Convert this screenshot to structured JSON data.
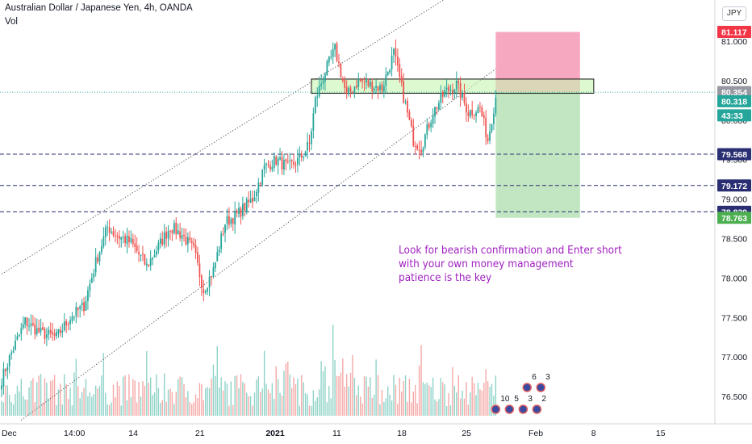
{
  "header": {
    "title": "Australian Dollar / Japanese Yen, 4h, OANDA",
    "volume_label": "Vol",
    "currency_button": "JPY"
  },
  "annotation": {
    "lines": [
      "Look for bearish confirmation and Enter short",
      "with your own money management",
      "patience is the key"
    ],
    "color": "#a020c0"
  },
  "colors": {
    "up": "#26a69a",
    "down": "#ef5350",
    "vol_up": "#8fd3c8",
    "vol_down": "#f4a9a7",
    "level_line": "#2a2e72",
    "stop_zone": "#f7a3be",
    "target_zone": "#bfe5bf",
    "resistance_zone": "#c6f5b0"
  },
  "chart_data": {
    "type": "candlestick",
    "symbol": "Australian Dollar / Japanese Yen",
    "interval": "4h",
    "source": "OANDA",
    "ylim": [
      76.2,
      81.45
    ],
    "y_ticks": [
      76.5,
      77.0,
      77.5,
      78.0,
      78.5,
      79.0,
      79.5,
      80.0,
      80.5,
      81.0
    ],
    "y_tick_labels": [
      "76.500",
      "77.000",
      "77.500",
      "78.000",
      "78.500",
      "79.000",
      "79.500",
      "80.000",
      "80.500",
      "81.000"
    ],
    "x_tick_labels": [
      "Dec",
      "14:00",
      "14",
      "21",
      "2021",
      "11",
      "18",
      "25",
      "Feb",
      "8",
      "15"
    ],
    "x_tick_index": [
      0,
      35,
      68,
      102,
      138,
      172,
      205,
      238,
      272,
      304,
      337
    ],
    "series_anchors": [
      [
        0,
        76.72
      ],
      [
        5,
        77.05
      ],
      [
        12,
        77.45
      ],
      [
        20,
        77.3
      ],
      [
        28,
        77.25
      ],
      [
        35,
        77.5
      ],
      [
        42,
        77.65
      ],
      [
        48,
        78.2
      ],
      [
        54,
        78.65
      ],
      [
        58,
        78.55
      ],
      [
        66,
        78.45
      ],
      [
        74,
        78.15
      ],
      [
        80,
        78.4
      ],
      [
        86,
        78.65
      ],
      [
        92,
        78.55
      ],
      [
        98,
        78.35
      ],
      [
        103,
        77.85
      ],
      [
        108,
        78.1
      ],
      [
        114,
        78.7
      ],
      [
        120,
        78.8
      ],
      [
        128,
        79.0
      ],
      [
        134,
        79.4
      ],
      [
        140,
        79.5
      ],
      [
        146,
        79.4
      ],
      [
        152,
        79.5
      ],
      [
        157,
        79.7
      ],
      [
        160,
        80.25
      ],
      [
        164,
        80.55
      ],
      [
        170,
        80.9
      ],
      [
        176,
        80.3
      ],
      [
        182,
        80.5
      ],
      [
        188,
        80.45
      ],
      [
        194,
        80.4
      ],
      [
        200,
        80.85
      ],
      [
        205,
        80.3
      ],
      [
        210,
        79.75
      ],
      [
        214,
        79.65
      ],
      [
        220,
        80.1
      ],
      [
        226,
        80.35
      ],
      [
        232,
        80.45
      ],
      [
        238,
        80.1
      ],
      [
        244,
        80.15
      ],
      [
        248,
        79.75
      ],
      [
        252,
        80.3
      ]
    ],
    "candle_count": 253,
    "horizontal_levels": [
      {
        "price": 79.568,
        "label": "79.568"
      },
      {
        "price": 79.172,
        "label": "79.172"
      },
      {
        "price": 78.839,
        "label": "78.839"
      }
    ],
    "resistance_zone": {
      "low": 80.34,
      "high": 80.52
    },
    "position": {
      "type": "short",
      "entry": 80.354,
      "stop": 81.117,
      "target": 78.763,
      "start_index": 252,
      "end_index": 295
    },
    "price_labels": [
      {
        "text": "81.117",
        "price": 81.117,
        "bg": "#f23645",
        "fg": "#ffffff"
      },
      {
        "text": "80.354",
        "price": 80.354,
        "bg": "#9598a1",
        "fg": "#ffffff"
      },
      {
        "text": "80.318",
        "price": 80.24,
        "bg": "#26a69a",
        "fg": "#ffffff"
      },
      {
        "text": "43:33",
        "price": 80.06,
        "bg": "#26a69a",
        "fg": "#ffffff"
      },
      {
        "text": "79.568",
        "price": 79.568,
        "bg": "#2a2e72",
        "fg": "#ffffff"
      },
      {
        "text": "79.172",
        "price": 79.172,
        "bg": "#2a2e72",
        "fg": "#ffffff"
      },
      {
        "text": "78.839",
        "price": 78.839,
        "bg": "#2a2e72",
        "fg": "#ffffff"
      },
      {
        "text": "78.763",
        "price": 78.763,
        "bg": "#4caf50",
        "fg": "#ffffff"
      }
    ],
    "trend_lines": [
      {
        "from": [
          0,
          78.05
        ],
        "to": [
          276,
          82.3
        ],
        "style": "dotted"
      },
      {
        "from": [
          10,
          76.2
        ],
        "to": [
          252,
          80.65
        ],
        "style": "dotted"
      }
    ],
    "current_price_line": 80.354,
    "event_markers": [
      {
        "label": "6",
        "index": 268
      },
      {
        "label": "3",
        "index": 275
      },
      {
        "label": "10",
        "index": 252
      },
      {
        "label": "5",
        "index": 259
      },
      {
        "label": "3",
        "index": 266
      },
      {
        "label": "2",
        "index": 273
      }
    ]
  }
}
